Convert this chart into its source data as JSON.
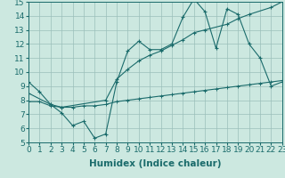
{
  "xlabel": "Humidex (Indice chaleur)",
  "bg_color": "#cce8e0",
  "grid_color": "#9bbfba",
  "line_color": "#1a6b6b",
  "xlim": [
    0,
    23
  ],
  "ylim": [
    5,
    15
  ],
  "xticks": [
    0,
    1,
    2,
    3,
    4,
    5,
    6,
    7,
    8,
    9,
    10,
    11,
    12,
    13,
    14,
    15,
    16,
    17,
    18,
    19,
    20,
    21,
    22,
    23
  ],
  "yticks": [
    5,
    6,
    7,
    8,
    9,
    10,
    11,
    12,
    13,
    14,
    15
  ],
  "series1_x": [
    0,
    1,
    2,
    3,
    4,
    5,
    6,
    7,
    8,
    9,
    10,
    11,
    12,
    13,
    14,
    15,
    16,
    17,
    18,
    19,
    20,
    21,
    22,
    23
  ],
  "series1_y": [
    9.3,
    8.6,
    7.7,
    7.1,
    6.2,
    6.5,
    5.3,
    5.6,
    9.3,
    11.5,
    12.2,
    11.6,
    11.6,
    12.0,
    13.9,
    15.2,
    14.3,
    11.7,
    14.5,
    14.1,
    12.0,
    11.0,
    9.0,
    9.3
  ],
  "series2_x": [
    0,
    2,
    3,
    7,
    8,
    9,
    10,
    11,
    12,
    13,
    14,
    15,
    16,
    18,
    19,
    20,
    22,
    23
  ],
  "series2_y": [
    8.5,
    7.7,
    7.5,
    8.0,
    9.5,
    10.2,
    10.8,
    11.2,
    11.5,
    11.9,
    12.3,
    12.8,
    13.0,
    13.4,
    13.8,
    14.1,
    14.6,
    15.0
  ],
  "series3_x": [
    0,
    1,
    2,
    3,
    4,
    5,
    6,
    7,
    8,
    9,
    10,
    11,
    12,
    13,
    14,
    15,
    16,
    17,
    18,
    19,
    20,
    21,
    22,
    23
  ],
  "series3_y": [
    7.9,
    7.9,
    7.6,
    7.5,
    7.5,
    7.6,
    7.6,
    7.7,
    7.9,
    8.0,
    8.1,
    8.2,
    8.3,
    8.4,
    8.5,
    8.6,
    8.7,
    8.8,
    8.9,
    9.0,
    9.1,
    9.2,
    9.3,
    9.4
  ],
  "tick_fontsize": 6.5,
  "label_fontsize": 7.5
}
